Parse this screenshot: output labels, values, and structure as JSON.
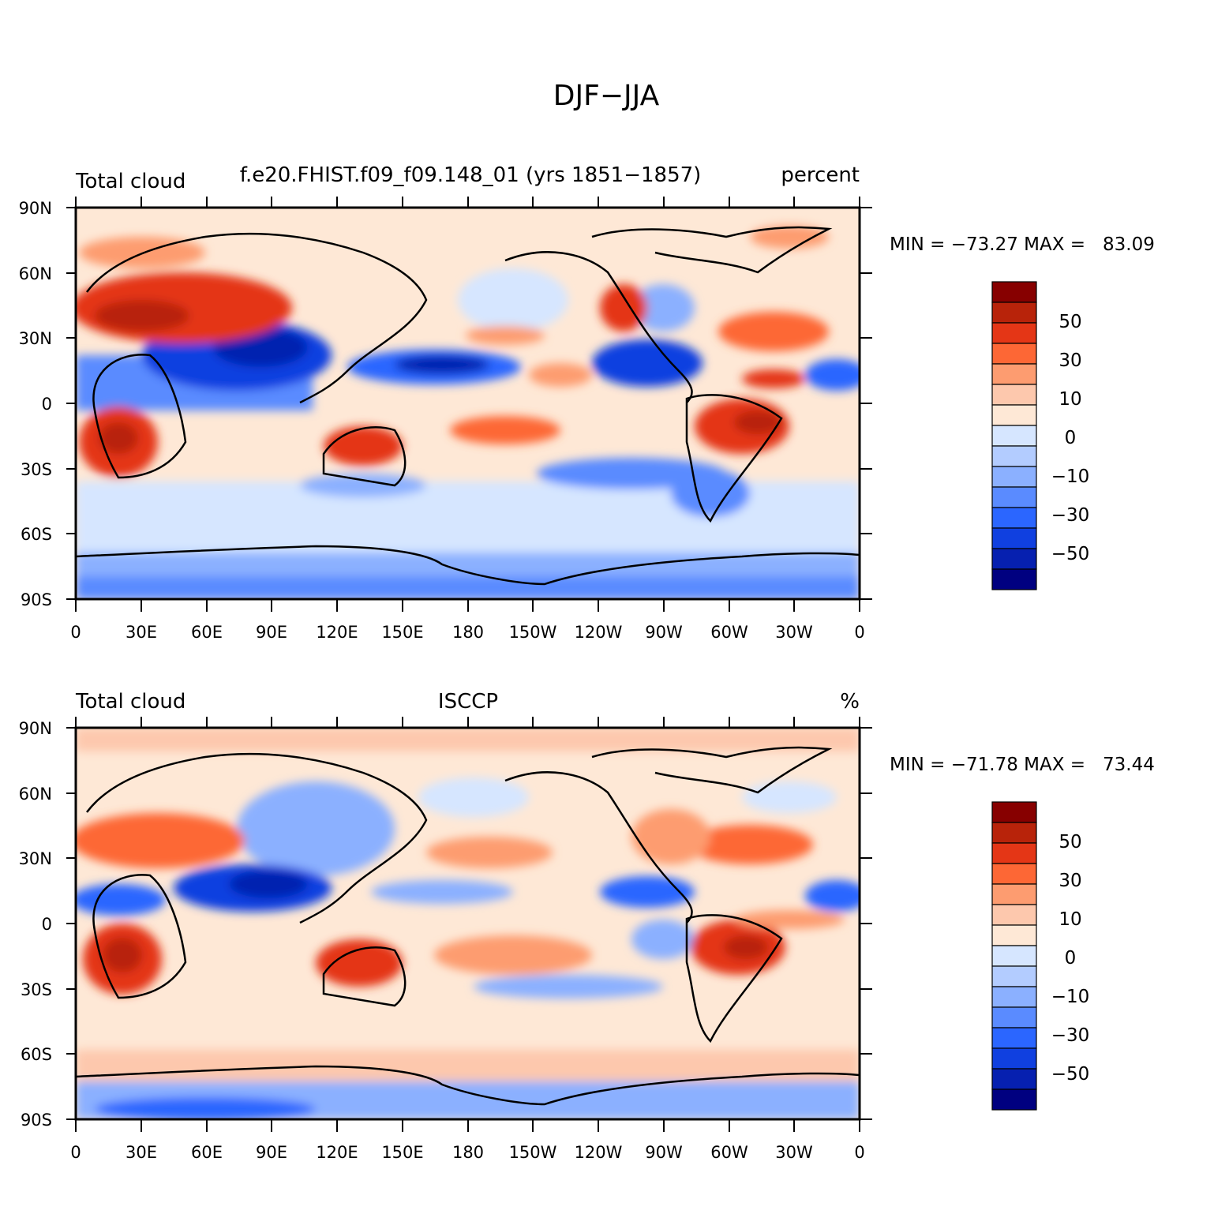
{
  "page_title": "DJF−JJA",
  "colorbar_levels": [
    "50",
    "30",
    "10",
    "0",
    "−10",
    "−30",
    "−50"
  ],
  "colorbar_colors": [
    "#870000",
    "#b8230a",
    "#e43616",
    "#fd6735",
    "#fd9c70",
    "#fdc8ad",
    "#fee8d6",
    "#d6e6ff",
    "#b3ccff",
    "#8bb0ff",
    "#5a8bff",
    "#2b66ff",
    "#1040e0",
    "#0620b0",
    "#000080"
  ],
  "lat_labels": [
    "90N",
    "60N",
    "30N",
    "0",
    "30S",
    "60S",
    "90S"
  ],
  "lon_labels": [
    "0",
    "30E",
    "60E",
    "90E",
    "120E",
    "150E",
    "180",
    "150W",
    "120W",
    "90W",
    "60W",
    "30W",
    "0"
  ],
  "panels": [
    {
      "left_title": "Total cloud",
      "center_title": "f.e20.FHIST.f09_f09.148_01 (yrs 1851−1857)",
      "right_title": "percent",
      "min_max": "MIN = −73.27 MAX =   83.09"
    },
    {
      "left_title": "Total cloud",
      "center_title": "ISCCP",
      "right_title": "%",
      "min_max": "MIN = −71.78 MAX =   73.44"
    }
  ]
}
